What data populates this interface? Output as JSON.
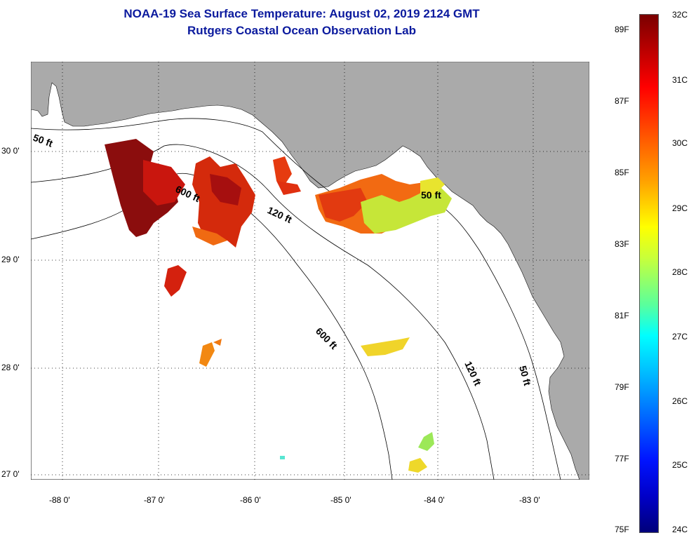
{
  "header": {
    "title": "NOAA-19 Sea Surface Temperature:  August 02, 2019 2124 GMT",
    "subtitle": "Rutgers Coastal Ocean Observation Lab"
  },
  "axes": {
    "lon_labels": [
      "-88 0'",
      "-87 0'",
      "-86 0'",
      "-85 0'",
      "-84 0'",
      "-83 0'"
    ],
    "lat_labels": [
      "30 0'",
      "29 0'",
      "28 0'",
      "27 0'"
    ]
  },
  "contours": {
    "c50_a": "50 ft",
    "c50_b": "50 ft",
    "c50_c": "50 ft",
    "c120_a": "120 ft",
    "c120_b": "120 ft",
    "c600_a": "600 ft",
    "c600_b": "600 ft"
  },
  "colorbar": {
    "celsius": [
      "32C",
      "31C",
      "30C",
      "29C",
      "28C",
      "27C",
      "26C",
      "25C",
      "24C"
    ],
    "fahrenheit": [
      "89F",
      "87F",
      "85F",
      "83F",
      "81F",
      "79F",
      "77F",
      "75F"
    ]
  },
  "colors": {
    "land": "#aaaaaa",
    "water": "#ffffff",
    "title": "#0b1a9e",
    "sst_hot": "#8b0d0d",
    "sst_warm": "#e03010",
    "sst_mid": "#ff8a10",
    "sst_cool": "#e2e830",
    "sst_cooler": "#9ce858"
  }
}
